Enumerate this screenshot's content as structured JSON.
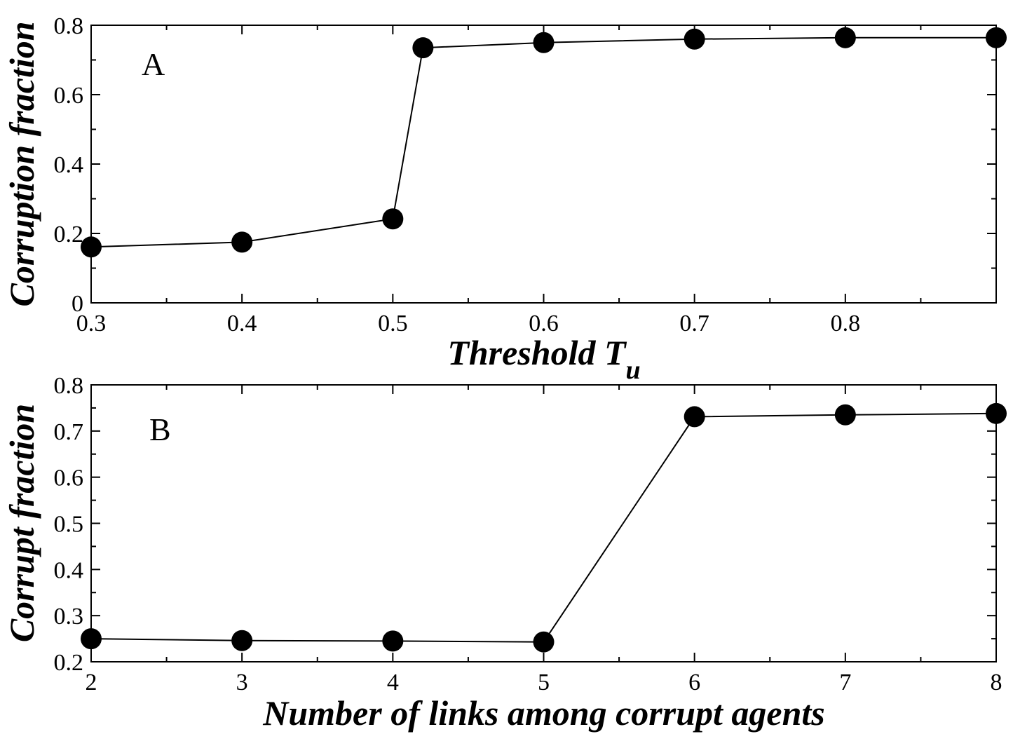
{
  "chart_data": [
    {
      "type": "line",
      "panel_label": "A",
      "xlabel": "Threshold T",
      "xlabel_subscript": "u",
      "ylabel": "Corruption fraction",
      "xlim": [
        0.3,
        0.9
      ],
      "ylim": [
        0,
        0.8
      ],
      "xticks": [
        0.3,
        0.4,
        0.5,
        0.6,
        0.7,
        0.8
      ],
      "xtick_labels": [
        "0.3",
        "0.4",
        "0.5",
        "0.6",
        "0.7",
        "0.8"
      ],
      "xminor": [
        0.35,
        0.45,
        0.55,
        0.65,
        0.75,
        0.85
      ],
      "yticks": [
        0,
        0.2,
        0.4,
        0.6,
        0.8
      ],
      "ytick_labels": [
        "0",
        "0.2",
        "0.4",
        "0.6",
        "0.8"
      ],
      "yminor": [
        0.1,
        0.3,
        0.5,
        0.7
      ],
      "grid": false,
      "series": [
        {
          "x": [
            0.3,
            0.4,
            0.5,
            0.52,
            0.6,
            0.7,
            0.8,
            0.9
          ],
          "y": [
            0.161,
            0.175,
            0.242,
            0.735,
            0.75,
            0.76,
            0.764,
            0.764
          ]
        }
      ]
    },
    {
      "type": "line",
      "panel_label": "B",
      "xlabel": "Number of links among corrupt agents",
      "ylabel": "Corrupt fraction",
      "xlim": [
        2,
        8
      ],
      "ylim": [
        0.2,
        0.8
      ],
      "xticks": [
        2,
        3,
        4,
        5,
        6,
        7,
        8
      ],
      "xtick_labels": [
        "2",
        "3",
        "4",
        "5",
        "6",
        "7",
        "8"
      ],
      "xminor": [
        2.5,
        3.5,
        4.5,
        5.5,
        6.5,
        7.5
      ],
      "yticks": [
        0.2,
        0.3,
        0.4,
        0.5,
        0.6,
        0.7,
        0.8
      ],
      "ytick_labels": [
        "0.2",
        "0.3",
        "0.4",
        "0.5",
        "0.6",
        "0.7",
        "0.8"
      ],
      "yminor": [
        0.25,
        0.35,
        0.45,
        0.55,
        0.65,
        0.75
      ],
      "grid": false,
      "series": [
        {
          "x": [
            2,
            3,
            4,
            5,
            6,
            7,
            8
          ],
          "y": [
            0.25,
            0.246,
            0.245,
            0.243,
            0.731,
            0.735,
            0.738
          ]
        }
      ]
    }
  ]
}
